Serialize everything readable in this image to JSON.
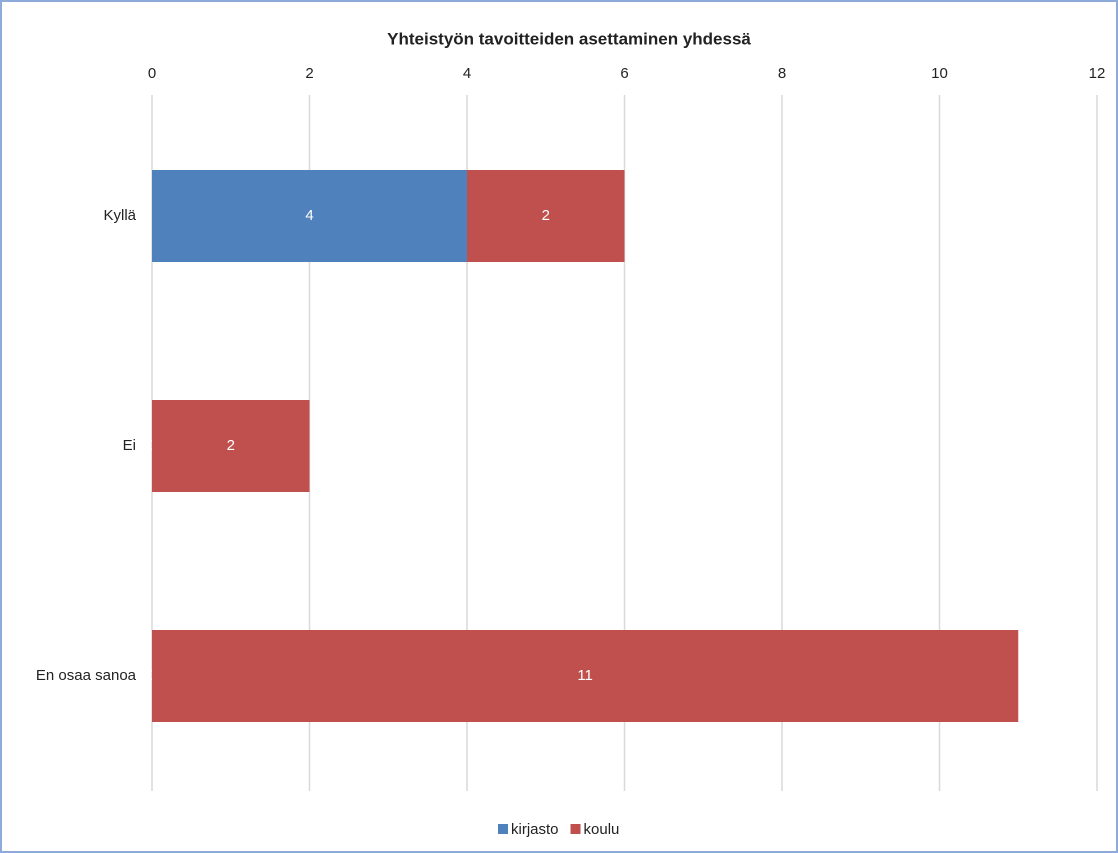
{
  "chart_data": {
    "type": "bar",
    "orientation": "horizontal",
    "stacked": true,
    "title": "Yhteistyön tavoitteiden asettaminen yhdessä",
    "categories": [
      "Kyllä",
      "Ei",
      "En osaa sanoa"
    ],
    "series": [
      {
        "name": "kirjasto",
        "color": "#4f81bd",
        "values": [
          4,
          0,
          0
        ]
      },
      {
        "name": "koulu",
        "color": "#c0504d",
        "values": [
          2,
          2,
          11
        ]
      }
    ],
    "xlim": [
      0,
      12
    ],
    "xticks": [
      0,
      2,
      4,
      6,
      8,
      10,
      12
    ],
    "grid": true,
    "legend": "bottom"
  }
}
